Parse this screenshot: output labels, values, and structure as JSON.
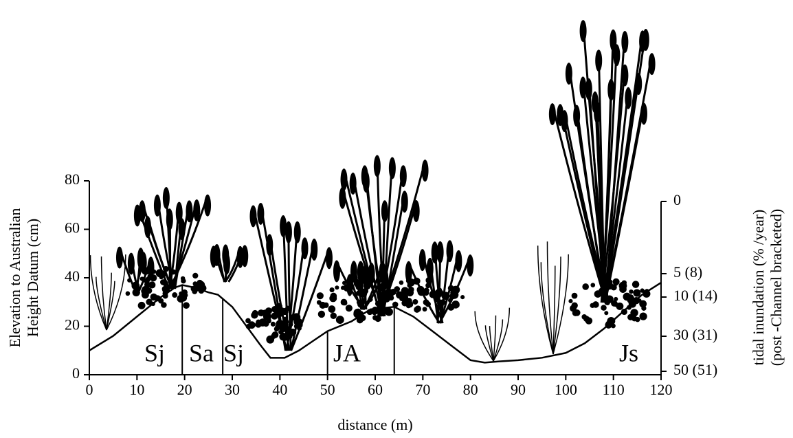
{
  "chart_data": {
    "type": "line",
    "x_label": "distance (m)",
    "y_label": [
      "Elevation to Australian",
      "Height Datum (cm)"
    ],
    "y2_label": [
      "tidal inundation (% /year)",
      "(post -Channel bracketed)"
    ],
    "x": [
      0,
      5,
      10,
      15,
      18,
      19.5,
      22,
      25,
      27,
      30,
      33,
      36,
      38,
      41,
      44,
      47,
      50,
      55,
      59,
      64,
      68,
      72,
      76,
      80,
      83,
      86,
      90,
      95,
      100,
      104,
      108,
      112,
      116,
      120
    ],
    "values": [
      10,
      16,
      24,
      32,
      36,
      37,
      36,
      34,
      33,
      28,
      20,
      12,
      7,
      7,
      10,
      14,
      18,
      22,
      27,
      28,
      24,
      18,
      12,
      6,
      5,
      5.5,
      6,
      7,
      9,
      13,
      19,
      26,
      33,
      38
    ],
    "color": "#000000",
    "xlim": [
      0,
      120
    ],
    "ylim": [
      0,
      80
    ],
    "xticks": [
      0,
      10,
      20,
      30,
      40,
      50,
      60,
      70,
      80,
      90,
      100,
      110,
      120
    ],
    "yticks": [
      0,
      20,
      40,
      60,
      80
    ],
    "y2ticks": [
      {
        "value": 0,
        "label": "0"
      },
      {
        "value": 5,
        "label": "5 (8)"
      },
      {
        "value": 10,
        "label": "10 (14)"
      },
      {
        "value": 30,
        "label": "30 (31)"
      },
      {
        "value": 50,
        "label": "50 (51)"
      }
    ],
    "zone_boundaries": [
      19.5,
      28,
      50,
      64
    ],
    "zones": [
      "Sj",
      "Sa",
      "Sj",
      "JA",
      "Js"
    ]
  }
}
